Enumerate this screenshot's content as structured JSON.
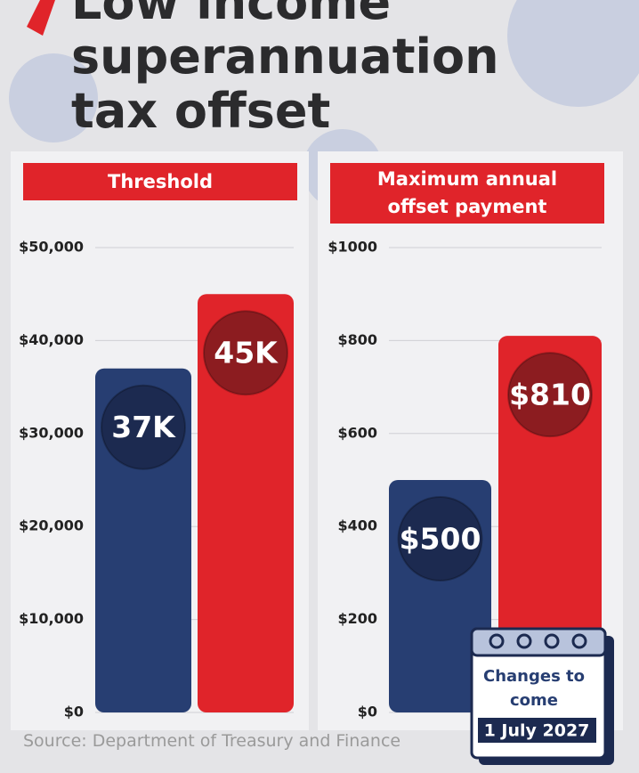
{
  "title": "Low income superannuation tax offset",
  "source": "Source: Department of Treasury and Finance",
  "callout": {
    "text": "Changes to come",
    "date": "1 July 2027"
  },
  "chart_data": [
    {
      "type": "bar",
      "title": "Threshold",
      "categories": [
        null,
        null
      ],
      "values": [
        37000,
        45000
      ],
      "value_labels": [
        "37K",
        "45K"
      ],
      "colors": [
        "#273e72",
        "#e0242a"
      ],
      "ylim": [
        0,
        50000
      ],
      "yticks": [
        {
          "value": 0,
          "label": "$0"
        },
        {
          "value": 10000,
          "label": "$10,000"
        },
        {
          "value": 20000,
          "label": "$20,000"
        },
        {
          "value": 30000,
          "label": "$30,000"
        },
        {
          "value": 40000,
          "label": "$40,000"
        },
        {
          "value": 50000,
          "label": "$50,000"
        }
      ],
      "grid": true
    },
    {
      "type": "bar",
      "title": "Maximum annual offset payment",
      "categories": [
        null,
        null
      ],
      "values": [
        500,
        810
      ],
      "value_labels": [
        "$500",
        "$810"
      ],
      "colors": [
        "#273e72",
        "#e0242a"
      ],
      "ylim": [
        0,
        1000
      ],
      "yticks": [
        {
          "value": 0,
          "label": "$0"
        },
        {
          "value": 200,
          "label": "$200"
        },
        {
          "value": 400,
          "label": "$400"
        },
        {
          "value": 600,
          "label": "$600"
        },
        {
          "value": 800,
          "label": "$800"
        },
        {
          "value": 1000,
          "label": "$1000"
        }
      ],
      "grid": true
    }
  ]
}
